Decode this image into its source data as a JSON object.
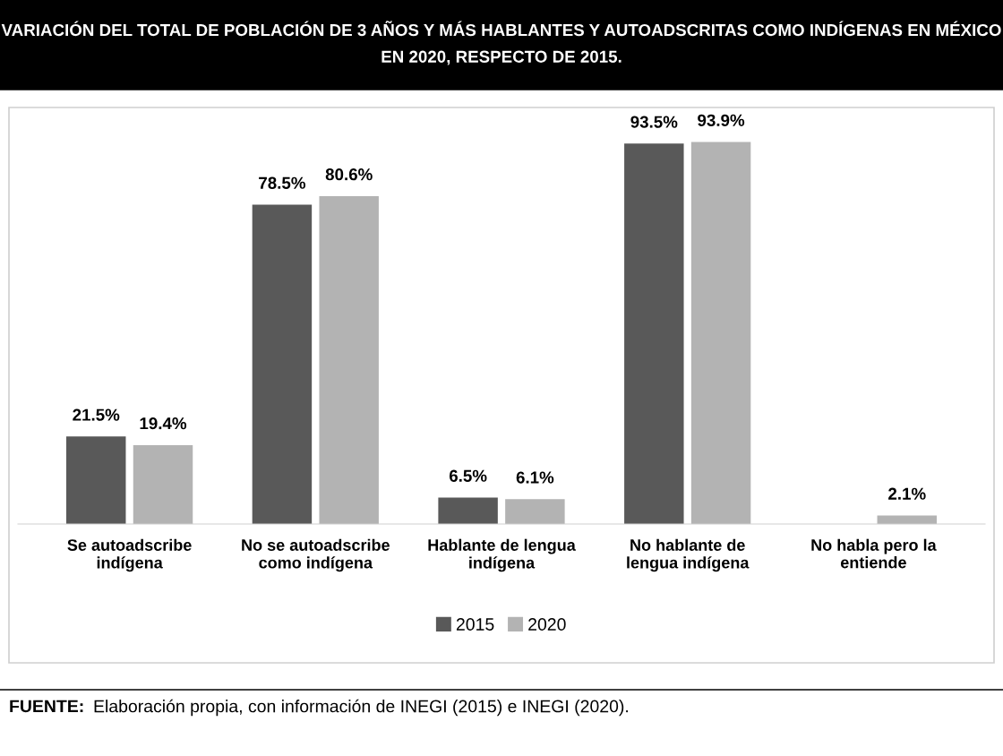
{
  "chart_data": {
    "type": "bar",
    "title": "VARIACIÓN DEL TOTAL DE POBLACIÓN DE 3 AÑOS Y MÁS HABLANTES Y AUTOADSCRITAS COMO INDÍGENAS EN MÉXICO EN 2020, RESPECTO DE 2015.",
    "categories": [
      "Se autoadscribe\nindígena",
      "No se autoadscribe\ncomo indígena",
      "Hablante de lengua\nindígena",
      "No hablante de\nlengua indígena",
      "No habla pero la\nentiende"
    ],
    "series": [
      {
        "name": "2015",
        "color": "#595959",
        "values": [
          21.5,
          78.5,
          6.5,
          93.5,
          null
        ],
        "value_labels": [
          "21.5%",
          "78.5%",
          "6.5%",
          "93.5%",
          null
        ]
      },
      {
        "name": "2020",
        "color": "#b3b3b3",
        "values": [
          19.4,
          80.6,
          6.1,
          93.9,
          2.1
        ],
        "value_labels": [
          "19.4%",
          "80.6%",
          "6.1%",
          "93.9%",
          "2.1%"
        ]
      }
    ],
    "legend": "bottom",
    "grid": false,
    "annotations": [
      "FUENTE: Elaboración propia, con información de INEGI (2015) e INEGI (2020)."
    ]
  }
}
